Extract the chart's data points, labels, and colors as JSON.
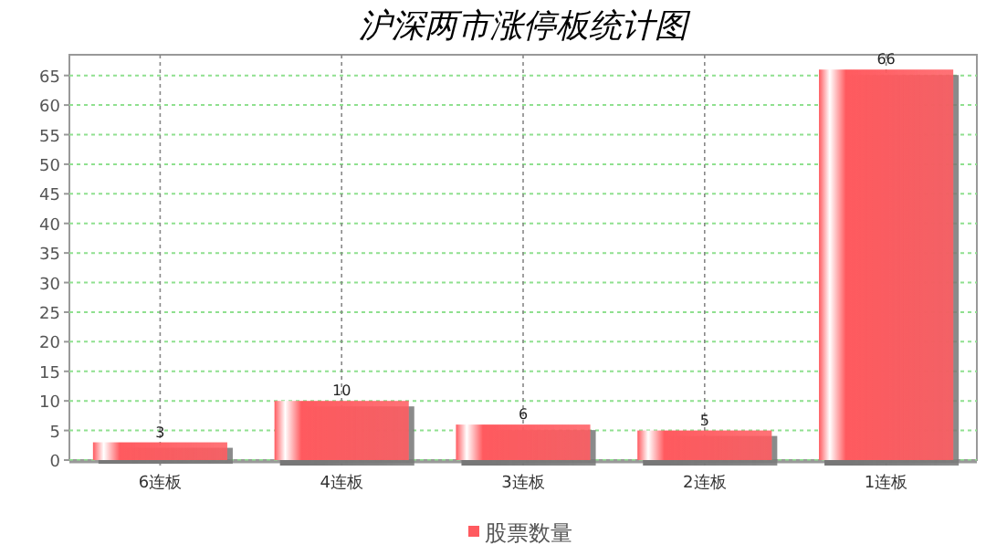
{
  "chart_data": {
    "type": "bar",
    "title": "沪深两市涨停板统计图",
    "categories": [
      "6连板",
      "4连板",
      "3连板",
      "2连板",
      "1连板"
    ],
    "series": [
      {
        "name": "股票数量",
        "color": "#ff5a5f",
        "values": [
          3,
          10,
          6,
          5,
          66
        ]
      }
    ],
    "ylim": [
      0,
      68.5
    ],
    "yticks": [
      0,
      5,
      10,
      15,
      20,
      25,
      30,
      35,
      40,
      45,
      50,
      55,
      60,
      65
    ],
    "grid": true,
    "legend": "bottom",
    "data_labels": true
  }
}
